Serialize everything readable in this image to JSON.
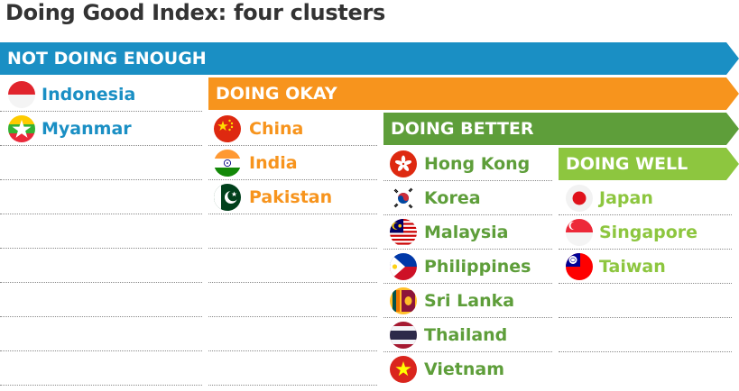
{
  "title": "Doing Good Index: four clusters",
  "colors": {
    "not_doing_enough": "#1a8fc4",
    "doing_okay": "#f7941d",
    "doing_better": "#5e9e3a",
    "doing_well": "#8dc63f"
  },
  "chart_data": {
    "type": "table",
    "title": "Doing Good Index: four clusters",
    "clusters": [
      {
        "name": "NOT DOING ENOUGH",
        "countries": [
          "Indonesia",
          "Myanmar"
        ]
      },
      {
        "name": "DOING OKAY",
        "countries": [
          "China",
          "India",
          "Pakistan"
        ]
      },
      {
        "name": "DOING BETTER",
        "countries": [
          "Hong Kong",
          "Korea",
          "Malaysia",
          "Philippines",
          "Sri Lanka",
          "Thailand",
          "Vietnam"
        ]
      },
      {
        "name": "DOING WELL",
        "countries": [
          "Japan",
          "Singapore",
          "Taiwan"
        ]
      }
    ]
  }
}
